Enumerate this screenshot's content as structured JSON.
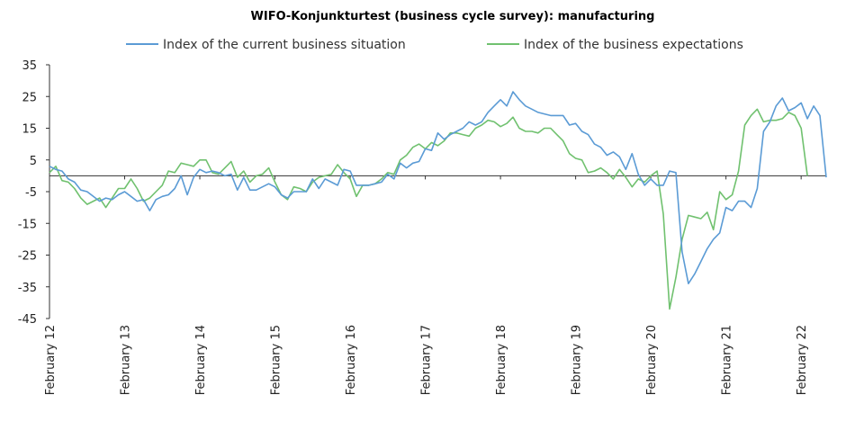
{
  "chart_data": {
    "type": "line",
    "title": "WIFO-Konjunkturtest (business cycle survey): manufacturing",
    "xlabel": "",
    "ylabel": "",
    "ylim": [
      -45,
      35
    ],
    "yticks": [
      35,
      25,
      15,
      5,
      -5,
      -15,
      -25,
      -35,
      -45
    ],
    "x_labels": [
      "February 12",
      "February 13",
      "February 14",
      "February 15",
      "February 16",
      "February 17",
      "February 18",
      "February 19",
      "February 20",
      "February 21",
      "February 22"
    ],
    "x_start": "2012-02",
    "legend_position": "top",
    "series": [
      {
        "name": "Index of the current business situation",
        "color": "#5B9BD5",
        "values": [
          3,
          2,
          1.5,
          -1,
          -2,
          -4.5,
          -5,
          -6.5,
          -8,
          -7,
          -7.5,
          -6,
          -5,
          -6.5,
          -8,
          -7.5,
          -11,
          -7.5,
          -6.5,
          -6,
          -4,
          0,
          -6,
          -0.5,
          2,
          1,
          1.5,
          1,
          0,
          0.5,
          -4.5,
          -0.5,
          -4.5,
          -4.5,
          -3.5,
          -2.5,
          -3.5,
          -6,
          -7,
          -5,
          -5,
          -5,
          -1,
          -4,
          -1,
          -2,
          -3,
          2,
          1.5,
          -3,
          -3,
          -3,
          -2.5,
          -2,
          0.5,
          -1,
          4,
          2.5,
          4,
          4.5,
          8.5,
          8,
          13.5,
          11.5,
          13,
          14,
          15,
          17,
          16,
          17,
          20,
          22,
          24,
          22,
          26.5,
          24,
          22,
          21,
          20,
          19.5,
          19,
          19,
          19,
          16,
          16.5,
          14,
          13,
          10,
          9,
          6.5,
          7.5,
          6,
          2,
          7,
          0.5,
          -3,
          -1,
          -3,
          -3,
          1.5,
          1,
          -24,
          -34,
          -31,
          -27,
          -23,
          -20,
          -18,
          -10,
          -11,
          -8,
          -8,
          -10,
          -4,
          14,
          17,
          22,
          24.5,
          20.5,
          21.5,
          23,
          18,
          22,
          19,
          -0.5
        ]
      },
      {
        "name": "Index of the business expectations",
        "color": "#70C16F",
        "values": [
          1,
          3,
          -1.5,
          -2,
          -4,
          -7,
          -9,
          -8,
          -7,
          -10,
          -7,
          -4,
          -4,
          -1,
          -4,
          -8,
          -7,
          -5,
          -3,
          1.5,
          1,
          4,
          3.5,
          3,
          5,
          5,
          1,
          0.5,
          2.5,
          4.5,
          -0.5,
          1.5,
          -2,
          0,
          0.5,
          2.5,
          -2,
          -6,
          -7.5,
          -3.5,
          -4,
          -5,
          -2,
          -0.5,
          0,
          0.5,
          3.5,
          1,
          -1,
          -6.5,
          -3,
          -3,
          -2.5,
          -1,
          1,
          0.5,
          5,
          6.5,
          9,
          10,
          8.5,
          10.5,
          9.5,
          11,
          13.5,
          13.5,
          13,
          12.5,
          15,
          16,
          17.5,
          17,
          15.5,
          16.5,
          18.5,
          15,
          14,
          14,
          13.5,
          15,
          15,
          13,
          11,
          7,
          5.5,
          5,
          1,
          1.5,
          2.5,
          1,
          -1,
          2,
          -0.5,
          -3.5,
          -1,
          -2,
          0,
          1.5,
          -12,
          -42,
          -32,
          -20,
          -12.5,
          -13,
          -13.5,
          -11.5,
          -17,
          -5,
          -7.5,
          -6,
          1.5,
          16,
          19,
          21,
          17,
          17.5,
          17.5,
          18,
          20,
          19,
          15,
          0
        ]
      }
    ]
  }
}
